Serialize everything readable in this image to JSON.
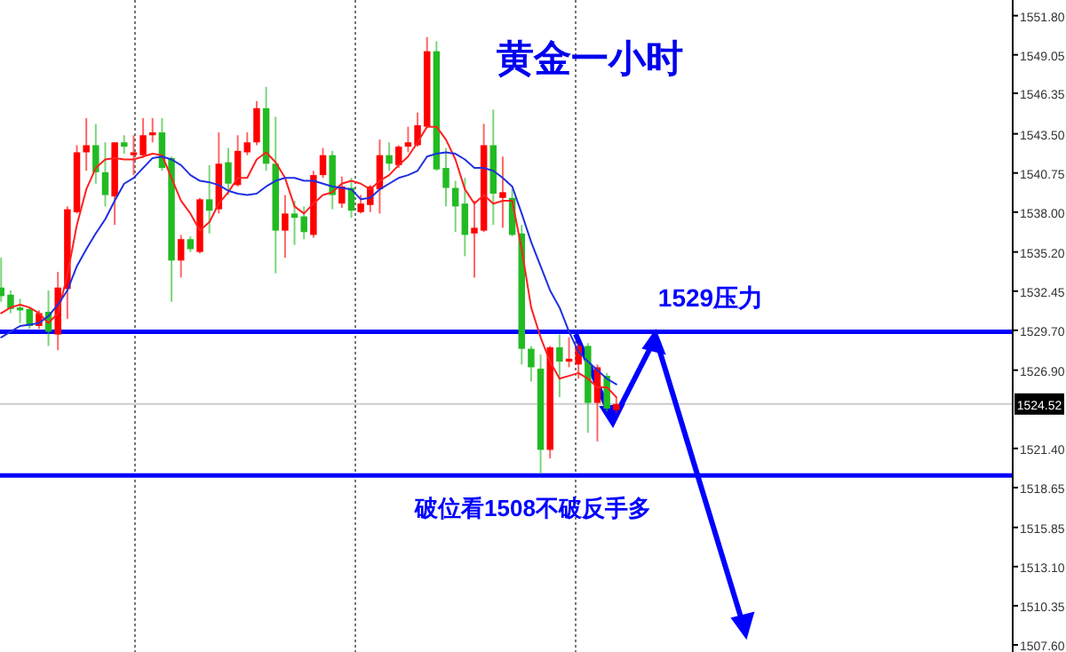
{
  "chart_data": {
    "type": "candlestick",
    "title": "黄金一小时",
    "categories": [
      null,
      null,
      null,
      null,
      null,
      null,
      null,
      null,
      null,
      null,
      null,
      null,
      null,
      null,
      null,
      null,
      null,
      null,
      null,
      null,
      null,
      null,
      null,
      null,
      null,
      null,
      null,
      null,
      null,
      null,
      null,
      null,
      null,
      null,
      null,
      null,
      null,
      null,
      null,
      null,
      null,
      null,
      null,
      null,
      null,
      null,
      null,
      null,
      null,
      null,
      null,
      null,
      null,
      null,
      null,
      null,
      null,
      null,
      null,
      null,
      null,
      null,
      null,
      null,
      null,
      null
    ],
    "ohlc": [
      [
        1532.7,
        1534.8,
        1531.7,
        1532.1
      ],
      [
        1532.2,
        1532.5,
        1530.9,
        1531.2
      ],
      [
        1531.3,
        1531.9,
        1530.2,
        1531.1
      ],
      [
        1531.2,
        1531.3,
        1529.8,
        1530.0
      ],
      [
        1530.0,
        1531.1,
        1529.8,
        1530.9
      ],
      [
        1531.0,
        1532.5,
        1528.6,
        1529.6
      ],
      [
        1529.4,
        1533.8,
        1528.3,
        1532.7
      ],
      [
        1532.6,
        1538.4,
        1530.5,
        1538.2
      ],
      [
        1538.0,
        1542.7,
        1537.9,
        1542.2
      ],
      [
        1542.2,
        1544.6,
        1540.9,
        1542.7
      ],
      [
        1542.7,
        1544.2,
        1540.0,
        1540.8
      ],
      [
        1540.8,
        1542.9,
        1538.4,
        1539.2
      ],
      [
        1539.1,
        1542.9,
        1537.1,
        1542.9
      ],
      [
        1542.9,
        1543.4,
        1542.1,
        1542.6
      ],
      [
        1542.0,
        1543.4,
        1540.6,
        1542.2
      ],
      [
        1542.0,
        1544.6,
        1541.8,
        1543.4
      ],
      [
        1543.4,
        1544.6,
        1542.9,
        1543.6
      ],
      [
        1543.6,
        1544.6,
        1540.9,
        1541.1
      ],
      [
        1541.8,
        1541.9,
        1531.7,
        1534.6
      ],
      [
        1534.6,
        1536.4,
        1533.4,
        1536.1
      ],
      [
        1536.1,
        1536.3,
        1535.2,
        1535.4
      ],
      [
        1535.2,
        1539.0,
        1535.1,
        1538.9
      ],
      [
        1538.9,
        1541.3,
        1536.5,
        1538.1
      ],
      [
        1538.2,
        1543.6,
        1537.9,
        1541.4
      ],
      [
        1541.5,
        1542.5,
        1539.2,
        1540.0
      ],
      [
        1539.9,
        1543.4,
        1539.8,
        1542.3
      ],
      [
        1542.2,
        1543.6,
        1542.0,
        1542.9
      ],
      [
        1542.9,
        1545.8,
        1542.7,
        1545.3
      ],
      [
        1545.3,
        1546.8,
        1540.9,
        1541.4
      ],
      [
        1541.4,
        1544.7,
        1533.7,
        1536.7
      ],
      [
        1536.7,
        1539.2,
        1534.8,
        1537.9
      ],
      [
        1537.9,
        1538.8,
        1535.7,
        1537.6
      ],
      [
        1537.7,
        1538.4,
        1536.1,
        1536.6
      ],
      [
        1536.4,
        1540.9,
        1536.2,
        1540.6
      ],
      [
        1540.6,
        1542.5,
        1540.4,
        1542.0
      ],
      [
        1542.0,
        1542.3,
        1538.2,
        1539.2
      ],
      [
        1538.6,
        1540.5,
        1538.3,
        1539.8
      ],
      [
        1539.7,
        1540.4,
        1537.6,
        1538.1
      ],
      [
        1538.0,
        1539.2,
        1537.9,
        1538.6
      ],
      [
        1538.5,
        1539.9,
        1538.0,
        1539.8
      ],
      [
        1539.6,
        1543.1,
        1537.9,
        1542.0
      ],
      [
        1542.0,
        1542.9,
        1540.9,
        1541.4
      ],
      [
        1541.3,
        1542.7,
        1541.1,
        1542.6
      ],
      [
        1542.6,
        1544.0,
        1542.2,
        1542.9
      ],
      [
        1542.7,
        1545.0,
        1542.6,
        1544.1
      ],
      [
        1544.0,
        1550.3,
        1543.9,
        1549.3
      ],
      [
        1549.3,
        1550.0,
        1540.9,
        1541.0
      ],
      [
        1541.1,
        1542.5,
        1538.4,
        1539.7
      ],
      [
        1539.7,
        1540.2,
        1536.6,
        1538.4
      ],
      [
        1538.6,
        1540.4,
        1534.9,
        1536.4
      ],
      [
        1536.5,
        1538.8,
        1533.4,
        1536.9
      ],
      [
        1536.7,
        1544.2,
        1536.6,
        1542.7
      ],
      [
        1542.7,
        1545.2,
        1537.1,
        1539.3
      ],
      [
        1539.0,
        1541.9,
        1536.9,
        1539.4
      ],
      [
        1539.0,
        1539.6,
        1536.3,
        1536.4
      ],
      [
        1536.5,
        1537.1,
        1527.3,
        1528.4
      ],
      [
        1528.4,
        1528.6,
        1526.1,
        1527.1
      ],
      [
        1527.0,
        1528.0,
        1519.6,
        1521.3
      ],
      [
        1521.3,
        1528.6,
        1520.7,
        1528.5
      ],
      [
        1528.5,
        1529.4,
        1525.0,
        1527.5
      ],
      [
        1527.5,
        1529.2,
        1527.1,
        1527.7
      ],
      [
        1527.3,
        1528.8,
        1526.3,
        1528.6
      ],
      [
        1528.6,
        1528.8,
        1522.5,
        1524.6
      ],
      [
        1524.6,
        1527.3,
        1521.9,
        1527.1
      ],
      [
        1526.5,
        1526.7,
        1524.0,
        1524.2
      ],
      [
        1524.1,
        1525.0,
        1523.9,
        1524.52
      ]
    ],
    "colors": [
      "#22bb22",
      "#22bb22",
      "#22bb22",
      "#22bb22",
      "#ff0000",
      "#22bb22",
      "#ff0000",
      "#ff0000",
      "#ff0000",
      "#ff0000",
      "#22bb22",
      "#22bb22",
      "#ff0000",
      "#22bb22",
      "#ff0000",
      "#ff0000",
      "#ff0000",
      "#22bb22",
      "#22bb22",
      "#ff0000",
      "#22bb22",
      "#ff0000",
      "#22bb22",
      "#ff0000",
      "#22bb22",
      "#ff0000",
      "#ff0000",
      "#ff0000",
      "#22bb22",
      "#22bb22",
      "#ff0000",
      "#22bb22",
      "#22bb22",
      "#ff0000",
      "#ff0000",
      "#22bb22",
      "#ff0000",
      "#22bb22",
      "#ff0000",
      "#ff0000",
      "#ff0000",
      "#22bb22",
      "#ff0000",
      "#ff0000",
      "#ff0000",
      "#ff0000",
      "#22bb22",
      "#22bb22",
      "#22bb22",
      "#22bb22",
      "#ff0000",
      "#ff0000",
      "#22bb22",
      "#ff0000",
      "#22bb22",
      "#22bb22",
      "#22bb22",
      "#22bb22",
      "#ff0000",
      "#22bb22",
      "#ff0000",
      "#ff0000",
      "#22bb22",
      "#ff0000",
      "#22bb22",
      "#ff0000"
    ],
    "series": [
      {
        "type": "line",
        "color": "#ff2020",
        "values": [
          1530.9,
          1531.3,
          1531.5,
          1531.3,
          1530.9,
          1530.2,
          1530.9,
          1533.6,
          1537.1,
          1539.6,
          1541.1,
          1541.7,
          1541.8,
          1541.7,
          1541.7,
          1541.9,
          1542.1,
          1542.0,
          1540.4,
          1538.8,
          1537.9,
          1536.7,
          1537.3,
          1538.6,
          1539.4,
          1540.4,
          1540.4,
          1541.7,
          1542.2,
          1541.5,
          1540.4,
          1538.4,
          1537.9,
          1538.6,
          1539.2,
          1539.4,
          1540.0,
          1540.2,
          1540.0,
          1539.6,
          1540.2,
          1540.6,
          1541.3,
          1541.9,
          1542.9,
          1544.0,
          1544.0,
          1543.1,
          1541.7,
          1539.6,
          1538.6,
          1539.2,
          1538.6,
          1538.8,
          1538.8,
          1535.4,
          1531.3,
          1529.2,
          1527.5,
          1526.3,
          1526.5,
          1526.7,
          1526.3,
          1525.7,
          1525.7,
          1525.0
        ]
      },
      {
        "type": "line",
        "color": "#2030e0",
        "values": [
          1529.2,
          1529.6,
          1530.0,
          1530.1,
          1530.2,
          1530.7,
          1531.5,
          1532.5,
          1534.2,
          1535.4,
          1536.5,
          1537.5,
          1538.8,
          1540.0,
          1540.4,
          1541.1,
          1541.8,
          1541.9,
          1541.7,
          1541.3,
          1540.6,
          1540.2,
          1540.1,
          1539.9,
          1539.5,
          1539.3,
          1539.2,
          1539.3,
          1539.8,
          1540.2,
          1540.4,
          1540.4,
          1540.2,
          1540.2,
          1540.0,
          1539.8,
          1539.7,
          1539.6,
          1538.9,
          1539.0,
          1539.6,
          1540.0,
          1540.4,
          1540.6,
          1540.9,
          1541.9,
          1542.1,
          1542.2,
          1542.1,
          1541.7,
          1541.1,
          1541.1,
          1540.9,
          1540.4,
          1539.8,
          1537.9,
          1535.9,
          1534.2,
          1532.5,
          1531.3,
          1529.6,
          1528.2,
          1527.5,
          1526.9,
          1526.3,
          1525.9
        ]
      }
    ],
    "ylim": [
      1507.1,
      1552.9
    ],
    "yticks": [
      {
        "value": 1551.8,
        "label": "1551.80"
      },
      {
        "value": 1549.05,
        "label": "1549.05"
      },
      {
        "value": 1546.35,
        "label": "1546.35"
      },
      {
        "value": 1543.5,
        "label": "1543.50"
      },
      {
        "value": 1540.75,
        "label": "1540.75"
      },
      {
        "value": 1538.0,
        "label": "1538.00"
      },
      {
        "value": 1535.2,
        "label": "1535.20"
      },
      {
        "value": 1532.45,
        "label": "1532.45"
      },
      {
        "value": 1529.7,
        "label": "1529.70"
      },
      {
        "value": 1526.9,
        "label": "1526.90"
      },
      {
        "value": 1521.4,
        "label": "1521.40"
      },
      {
        "value": 1518.65,
        "label": "1518.65"
      },
      {
        "value": 1515.85,
        "label": "1515.85"
      },
      {
        "value": 1513.1,
        "label": "1513.10"
      },
      {
        "value": 1510.35,
        "label": "1510.35"
      },
      {
        "value": 1507.6,
        "label": "1507.60"
      }
    ],
    "ref_lines": [
      {
        "axis": "y",
        "value": 1529.6,
        "label": "1529压力",
        "color": "#0000ff"
      },
      {
        "axis": "y",
        "value": 1519.5,
        "label": "破位看1508不破反手多",
        "color": "#0000ff"
      },
      {
        "axis": "y",
        "value": 1524.52,
        "label": "1524.52",
        "color": "#cccccc"
      }
    ],
    "tick_labels": "y",
    "grid": false
  }
}
